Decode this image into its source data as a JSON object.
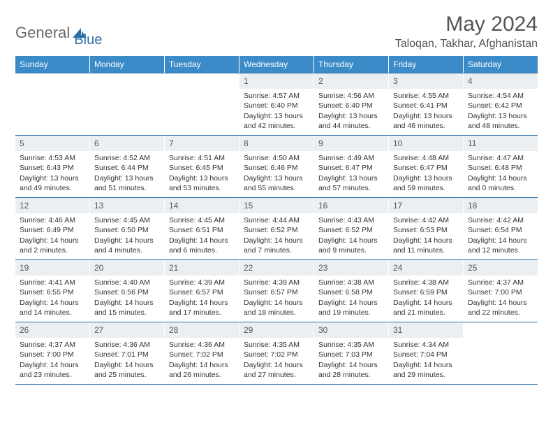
{
  "logo": {
    "part1": "General",
    "part2": "Blue"
  },
  "title": "May 2024",
  "location": "Taloqan, Takhar, Afghanistan",
  "colors": {
    "header_bg": "#3b8bc8",
    "border": "#2f6fa8",
    "daynum_bg": "#eceff1",
    "text": "#333333",
    "logo_gray": "#6a6a6a",
    "logo_blue": "#2f6fa8"
  },
  "fonts": {
    "title_size": 30,
    "location_size": 16,
    "dayhead_size": 12,
    "cell_size": 10.5
  },
  "dayNames": [
    "Sunday",
    "Monday",
    "Tuesday",
    "Wednesday",
    "Thursday",
    "Friday",
    "Saturday"
  ],
  "weeks": [
    [
      null,
      null,
      null,
      {
        "n": "1",
        "sr": "4:57 AM",
        "ss": "6:40 PM",
        "dl": "13 hours and 42 minutes."
      },
      {
        "n": "2",
        "sr": "4:56 AM",
        "ss": "6:40 PM",
        "dl": "13 hours and 44 minutes."
      },
      {
        "n": "3",
        "sr": "4:55 AM",
        "ss": "6:41 PM",
        "dl": "13 hours and 46 minutes."
      },
      {
        "n": "4",
        "sr": "4:54 AM",
        "ss": "6:42 PM",
        "dl": "13 hours and 48 minutes."
      }
    ],
    [
      {
        "n": "5",
        "sr": "4:53 AM",
        "ss": "6:43 PM",
        "dl": "13 hours and 49 minutes."
      },
      {
        "n": "6",
        "sr": "4:52 AM",
        "ss": "6:44 PM",
        "dl": "13 hours and 51 minutes."
      },
      {
        "n": "7",
        "sr": "4:51 AM",
        "ss": "6:45 PM",
        "dl": "13 hours and 53 minutes."
      },
      {
        "n": "8",
        "sr": "4:50 AM",
        "ss": "6:46 PM",
        "dl": "13 hours and 55 minutes."
      },
      {
        "n": "9",
        "sr": "4:49 AM",
        "ss": "6:47 PM",
        "dl": "13 hours and 57 minutes."
      },
      {
        "n": "10",
        "sr": "4:48 AM",
        "ss": "6:47 PM",
        "dl": "13 hours and 59 minutes."
      },
      {
        "n": "11",
        "sr": "4:47 AM",
        "ss": "6:48 PM",
        "dl": "14 hours and 0 minutes."
      }
    ],
    [
      {
        "n": "12",
        "sr": "4:46 AM",
        "ss": "6:49 PM",
        "dl": "14 hours and 2 minutes."
      },
      {
        "n": "13",
        "sr": "4:45 AM",
        "ss": "6:50 PM",
        "dl": "14 hours and 4 minutes."
      },
      {
        "n": "14",
        "sr": "4:45 AM",
        "ss": "6:51 PM",
        "dl": "14 hours and 6 minutes."
      },
      {
        "n": "15",
        "sr": "4:44 AM",
        "ss": "6:52 PM",
        "dl": "14 hours and 7 minutes."
      },
      {
        "n": "16",
        "sr": "4:43 AM",
        "ss": "6:52 PM",
        "dl": "14 hours and 9 minutes."
      },
      {
        "n": "17",
        "sr": "4:42 AM",
        "ss": "6:53 PM",
        "dl": "14 hours and 11 minutes."
      },
      {
        "n": "18",
        "sr": "4:42 AM",
        "ss": "6:54 PM",
        "dl": "14 hours and 12 minutes."
      }
    ],
    [
      {
        "n": "19",
        "sr": "4:41 AM",
        "ss": "6:55 PM",
        "dl": "14 hours and 14 minutes."
      },
      {
        "n": "20",
        "sr": "4:40 AM",
        "ss": "6:56 PM",
        "dl": "14 hours and 15 minutes."
      },
      {
        "n": "21",
        "sr": "4:39 AM",
        "ss": "6:57 PM",
        "dl": "14 hours and 17 minutes."
      },
      {
        "n": "22",
        "sr": "4:39 AM",
        "ss": "6:57 PM",
        "dl": "14 hours and 18 minutes."
      },
      {
        "n": "23",
        "sr": "4:38 AM",
        "ss": "6:58 PM",
        "dl": "14 hours and 19 minutes."
      },
      {
        "n": "24",
        "sr": "4:38 AM",
        "ss": "6:59 PM",
        "dl": "14 hours and 21 minutes."
      },
      {
        "n": "25",
        "sr": "4:37 AM",
        "ss": "7:00 PM",
        "dl": "14 hours and 22 minutes."
      }
    ],
    [
      {
        "n": "26",
        "sr": "4:37 AM",
        "ss": "7:00 PM",
        "dl": "14 hours and 23 minutes."
      },
      {
        "n": "27",
        "sr": "4:36 AM",
        "ss": "7:01 PM",
        "dl": "14 hours and 25 minutes."
      },
      {
        "n": "28",
        "sr": "4:36 AM",
        "ss": "7:02 PM",
        "dl": "14 hours and 26 minutes."
      },
      {
        "n": "29",
        "sr": "4:35 AM",
        "ss": "7:02 PM",
        "dl": "14 hours and 27 minutes."
      },
      {
        "n": "30",
        "sr": "4:35 AM",
        "ss": "7:03 PM",
        "dl": "14 hours and 28 minutes."
      },
      {
        "n": "31",
        "sr": "4:34 AM",
        "ss": "7:04 PM",
        "dl": "14 hours and 29 minutes."
      },
      null
    ]
  ],
  "labels": {
    "sunrise": "Sunrise: ",
    "sunset": "Sunset: ",
    "daylight": "Daylight: "
  }
}
